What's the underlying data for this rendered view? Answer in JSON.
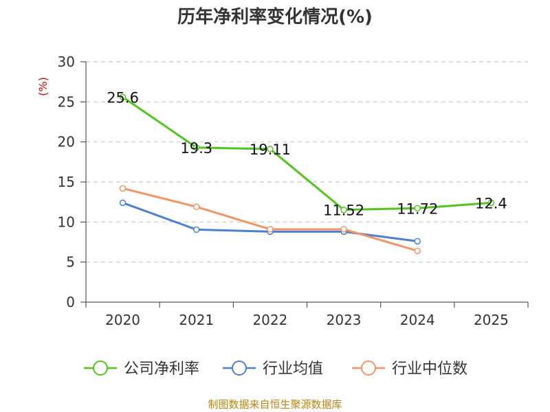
{
  "chart_data": {
    "type": "line",
    "title": "历年净利率变化情况(%)",
    "ylabel": "(%)",
    "xlabel": "",
    "ylim": [
      0,
      30
    ],
    "yticks": [
      0,
      5,
      10,
      15,
      20,
      25,
      30
    ],
    "categories": [
      "2020",
      "2021",
      "2022",
      "2023",
      "2024",
      "2025"
    ],
    "series": [
      {
        "name": "公司净利率",
        "color": "#52c41a",
        "values": [
          25.6,
          19.3,
          19.11,
          11.52,
          11.72,
          12.4
        ],
        "labels": [
          "25.6",
          "19.3",
          "19.11",
          "11.52",
          "11.72",
          "12.4"
        ],
        "show_labels": true
      },
      {
        "name": "行业均值",
        "color": "#4a7fd8",
        "values": [
          12.4,
          9.05,
          8.8,
          8.8,
          7.6,
          null
        ],
        "show_labels": false
      },
      {
        "name": "行业中位数",
        "color": "#f59362",
        "values": [
          14.2,
          11.9,
          9.1,
          9.1,
          6.4,
          null
        ],
        "show_labels": false
      }
    ],
    "grid": true,
    "legend_position": "bottom"
  },
  "source": "制图数据来自恒生聚源数据库"
}
